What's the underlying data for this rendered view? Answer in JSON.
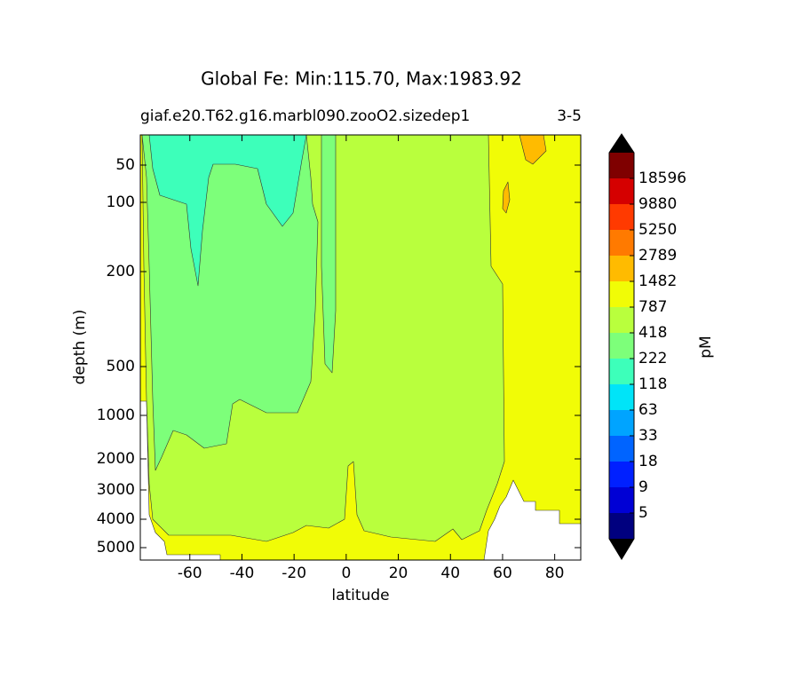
{
  "chart_data": {
    "type": "contour",
    "title": "Global Fe: Min:115.70, Max:1983.92",
    "subtitle_left": "giaf.e20.T62.g16.marbl090.zooO2.sizedep1",
    "subtitle_right": "3-5",
    "xlabel": "latitude",
    "ylabel": "depth (m)",
    "xlim": [
      -79,
      90
    ],
    "xticks": [
      -60,
      -40,
      -20,
      0,
      20,
      40,
      60,
      80
    ],
    "ylim": [
      10,
      5500
    ],
    "yticks": [
      50,
      100,
      200,
      500,
      1000,
      2000,
      3000,
      4000,
      5000
    ],
    "colorbar": {
      "label": "pM",
      "ticks": [
        5,
        9,
        18,
        33,
        63,
        118,
        222,
        418,
        787,
        1482,
        2789,
        5250,
        9880,
        18596
      ],
      "colors": [
        "#00007f",
        "#0000d5",
        "#0020ff",
        "#0064ff",
        "#00a4ff",
        "#00e4f8",
        "#3dffba",
        "#7dff7a",
        "#b9ff3d",
        "#f1fc06",
        "#ffbb00",
        "#ff7a00",
        "#ff3a00",
        "#d50000",
        "#7f0000"
      ],
      "over_color": "#000000",
      "under_color": "#000000"
    }
  }
}
